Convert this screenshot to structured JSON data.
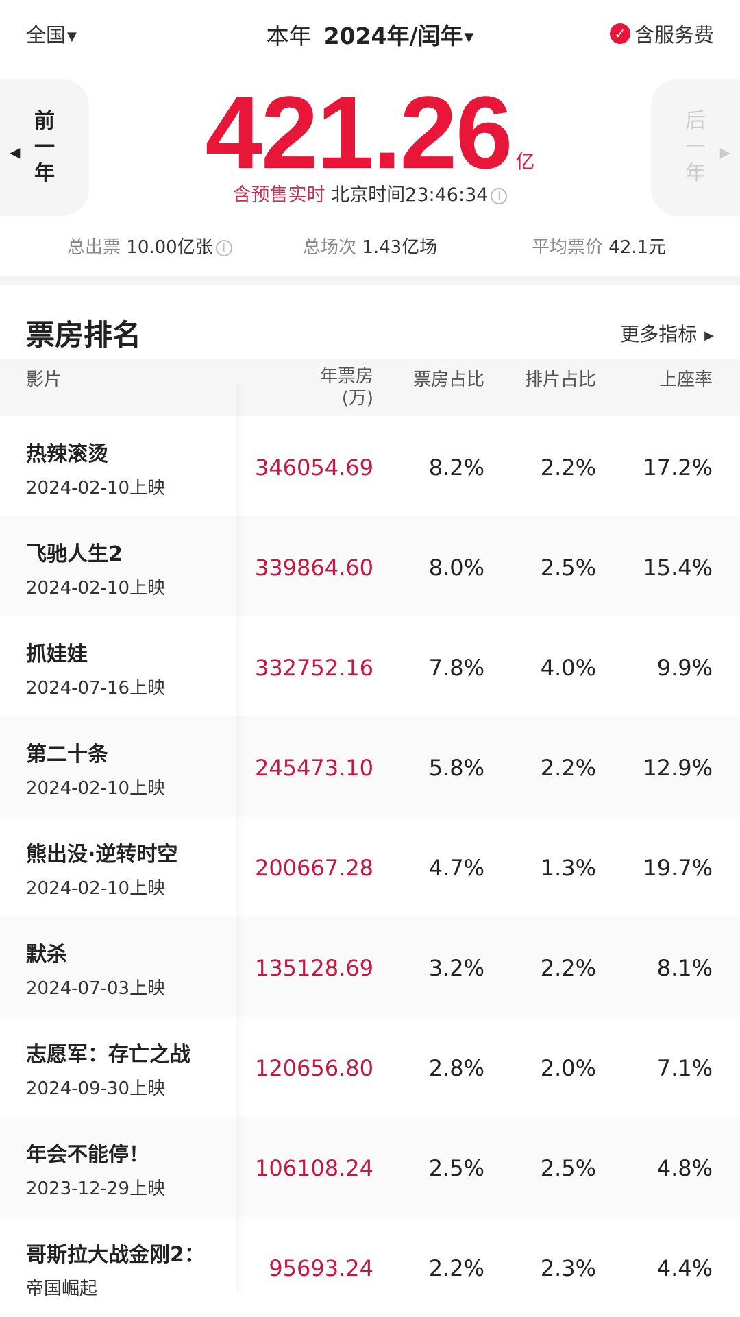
{
  "header": {
    "region": "全国",
    "period": "本年",
    "year": "2024年/闰年",
    "service_fee": "含服务费"
  },
  "nav": {
    "prev": [
      "前",
      "一",
      "年"
    ],
    "next": [
      "后",
      "一",
      "年"
    ]
  },
  "total": {
    "value": "421.26",
    "unit": "亿",
    "presale": "含预售实时",
    "time_label": "北京时间",
    "time": "23:46:34"
  },
  "stats": [
    {
      "label": "总出票",
      "value": "10.00亿张"
    },
    {
      "label": "总场次",
      "value": "1.43亿场"
    },
    {
      "label": "平均票价",
      "value": "42.1元"
    }
  ],
  "section": {
    "title": "票房排名",
    "more": "更多指标"
  },
  "columns": [
    "影片",
    "年票房",
    "(万)",
    "票房占比",
    "排片占比",
    "上座率"
  ],
  "accent": "#e8173a",
  "rows": [
    {
      "title": "热辣滚烫",
      "date": "2024-02-10上映",
      "box": "346054.69",
      "share": "8.2%",
      "sched": "2.2%",
      "seat": "17.2%"
    },
    {
      "title": "飞驰人生2",
      "date": "2024-02-10上映",
      "box": "339864.60",
      "share": "8.0%",
      "sched": "2.5%",
      "seat": "15.4%"
    },
    {
      "title": "抓娃娃",
      "date": "2024-07-16上映",
      "box": "332752.16",
      "share": "7.8%",
      "sched": "4.0%",
      "seat": "9.9%"
    },
    {
      "title": "第二十条",
      "date": "2024-02-10上映",
      "box": "245473.10",
      "share": "5.8%",
      "sched": "2.2%",
      "seat": "12.9%"
    },
    {
      "title": "熊出没·逆转时空",
      "date": "2024-02-10上映",
      "box": "200667.28",
      "share": "4.7%",
      "sched": "1.3%",
      "seat": "19.7%"
    },
    {
      "title": "默杀",
      "date": "2024-07-03上映",
      "box": "135128.69",
      "share": "3.2%",
      "sched": "2.2%",
      "seat": "8.1%"
    },
    {
      "title": "志愿军：存亡之战",
      "date": "2024-09-30上映",
      "box": "120656.80",
      "share": "2.8%",
      "sched": "2.0%",
      "seat": "7.1%"
    },
    {
      "title": "年会不能停！",
      "date": "2023-12-29上映",
      "box": "106108.24",
      "share": "2.5%",
      "sched": "2.5%",
      "seat": "4.8%"
    },
    {
      "title": "哥斯拉大战金刚2：",
      "date": "帝国崛起",
      "box": "95693.24",
      "share": "2.2%",
      "sched": "2.3%",
      "seat": "4.4%"
    }
  ]
}
